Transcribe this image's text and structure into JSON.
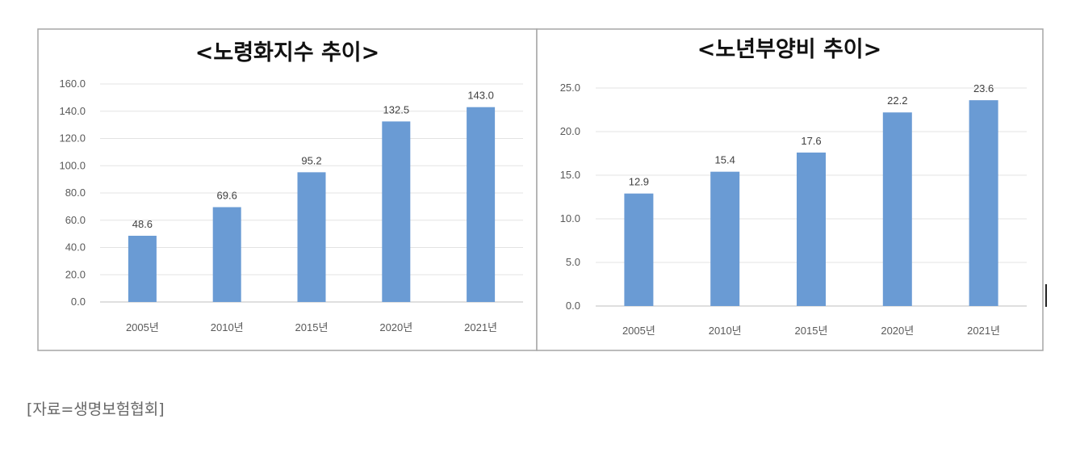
{
  "chart_data": [
    {
      "type": "bar",
      "title": "<노령화지수 추이>",
      "categories": [
        "2005년",
        "2010년",
        "2015년",
        "2020년",
        "2021년"
      ],
      "values": [
        48.6,
        69.6,
        95.2,
        132.5,
        143.0
      ],
      "value_labels": [
        "48.6",
        "69.6",
        "95.2",
        "132.5",
        "143.0"
      ],
      "yticks": [
        "0.0",
        "20.0",
        "40.0",
        "60.0",
        "80.0",
        "100.0",
        "120.0",
        "140.0",
        "160.0"
      ],
      "ylim": [
        0,
        160
      ],
      "grid": true,
      "bar_color": "#6a9bd4"
    },
    {
      "type": "bar",
      "title": "<노년부양비 추이>",
      "categories": [
        "2005년",
        "2010년",
        "2015년",
        "2020년",
        "2021년"
      ],
      "values": [
        12.9,
        15.4,
        17.6,
        22.2,
        23.6
      ],
      "value_labels": [
        "12.9",
        "15.4",
        "17.6",
        "22.2",
        "23.6"
      ],
      "yticks": [
        "0.0",
        "5.0",
        "10.0",
        "15.0",
        "20.0",
        "25.0"
      ],
      "ylim": [
        0,
        25
      ],
      "grid": true,
      "bar_color": "#6a9bd4"
    }
  ],
  "source": "[자료=생명보험협회]"
}
